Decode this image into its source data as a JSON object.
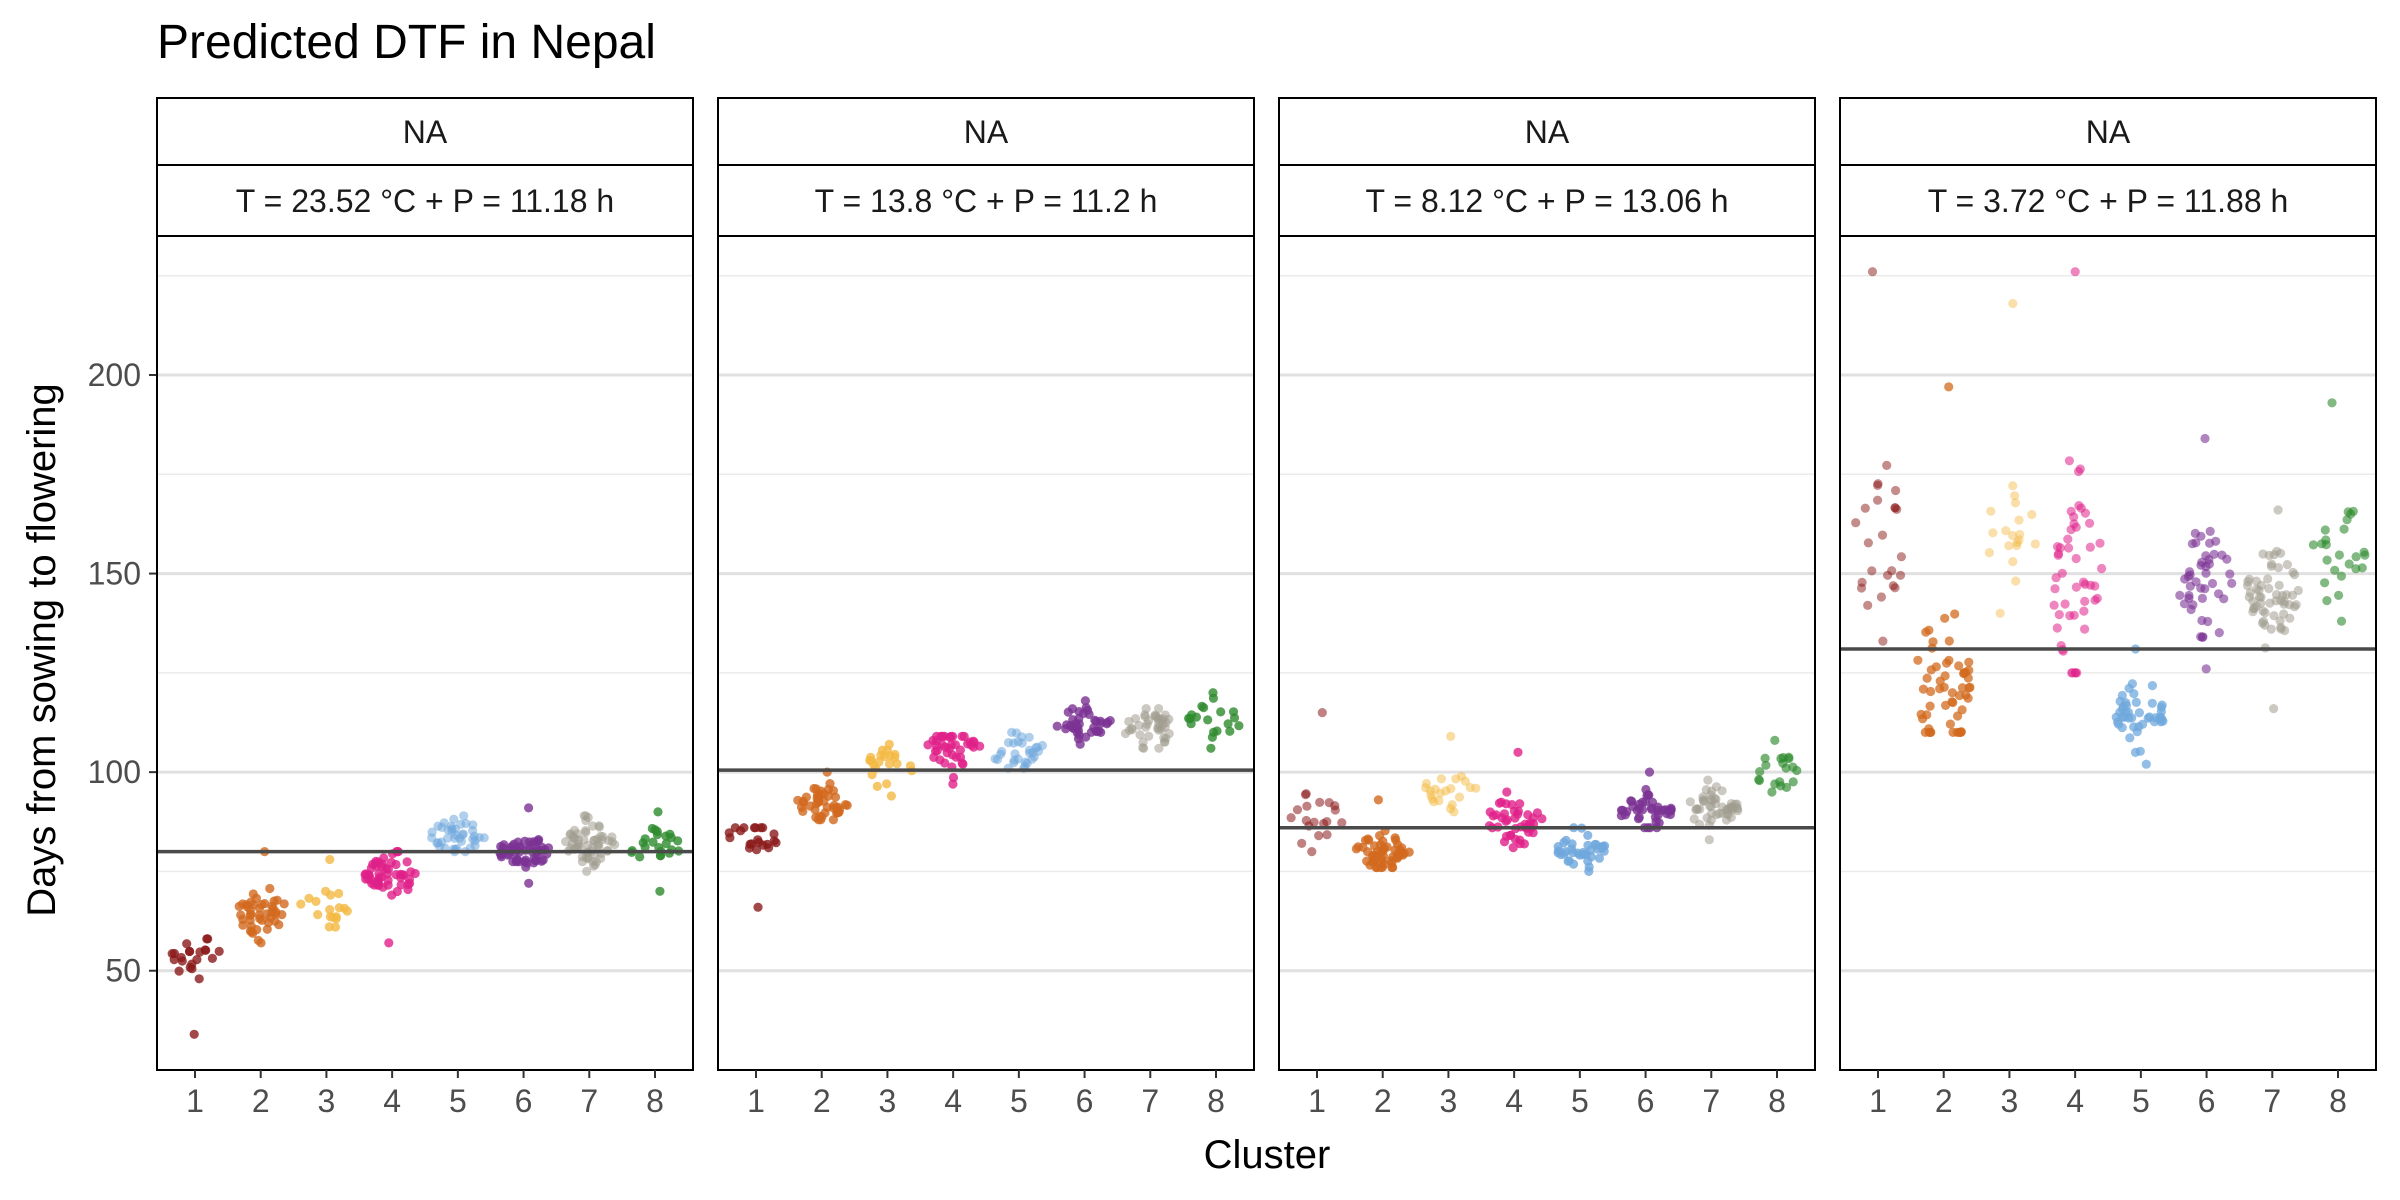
{
  "chart_data": {
    "type": "scatter",
    "title": "Predicted DTF in Nepal",
    "xlabel": "Cluster",
    "ylabel": "Days from sowing to flowering",
    "x_ticks": [
      "1",
      "2",
      "3",
      "4",
      "5",
      "6",
      "7",
      "8"
    ],
    "y_ticks": [
      50,
      100,
      150,
      200
    ],
    "ylim": [
      25,
      235
    ],
    "grid": true,
    "legend": "none",
    "series_colors": [
      "#8B1A1A",
      "#D2691E",
      "#F4B942",
      "#E0218A",
      "#6FA8DC",
      "#7B3294",
      "#A09C8F",
      "#2E8B2E"
    ],
    "panels": [
      {
        "strip_top": "NA",
        "strip_bottom": "T = 23.52 °C +  P = 11.18 h",
        "hline": 80,
        "clusters": [
          {
            "cluster": 1,
            "n": 22,
            "median": 54,
            "min": 34,
            "max": 58,
            "alpha": 0.8
          },
          {
            "cluster": 2,
            "n": 45,
            "median": 65,
            "min": 57,
            "max": 80,
            "alpha": 0.8
          },
          {
            "cluster": 3,
            "n": 18,
            "median": 66,
            "min": 61,
            "max": 78,
            "alpha": 0.8
          },
          {
            "cluster": 4,
            "n": 55,
            "median": 74,
            "min": 57,
            "max": 80,
            "alpha": 0.8
          },
          {
            "cluster": 5,
            "n": 40,
            "median": 84,
            "min": 80,
            "max": 89,
            "alpha": 0.55
          },
          {
            "cluster": 6,
            "n": 55,
            "median": 80,
            "min": 72,
            "max": 91,
            "alpha": 0.8
          },
          {
            "cluster": 7,
            "n": 60,
            "median": 82,
            "min": 75,
            "max": 89,
            "alpha": 0.55
          },
          {
            "cluster": 8,
            "n": 25,
            "median": 81,
            "min": 70,
            "max": 90,
            "alpha": 0.8
          }
        ]
      },
      {
        "strip_top": "NA",
        "strip_bottom": "T = 13.8 °C +  P = 11.2 h",
        "hline": 100.5,
        "clusters": [
          {
            "cluster": 1,
            "n": 22,
            "median": 84,
            "min": 66,
            "max": 86,
            "alpha": 0.8
          },
          {
            "cluster": 2,
            "n": 45,
            "median": 92,
            "min": 88,
            "max": 100,
            "alpha": 0.8
          },
          {
            "cluster": 3,
            "n": 22,
            "median": 101,
            "min": 94,
            "max": 107,
            "alpha": 0.8
          },
          {
            "cluster": 4,
            "n": 40,
            "median": 106,
            "min": 97,
            "max": 109,
            "alpha": 0.8
          },
          {
            "cluster": 5,
            "n": 30,
            "median": 105,
            "min": 101,
            "max": 110,
            "alpha": 0.55
          },
          {
            "cluster": 6,
            "n": 38,
            "median": 112,
            "min": 107,
            "max": 118,
            "alpha": 0.8
          },
          {
            "cluster": 7,
            "n": 42,
            "median": 111,
            "min": 106,
            "max": 116,
            "alpha": 0.55
          },
          {
            "cluster": 8,
            "n": 20,
            "median": 113,
            "min": 106,
            "max": 120,
            "alpha": 0.8
          }
        ]
      },
      {
        "strip_top": "NA",
        "strip_bottom": "T = 8.12 °C +  P = 13.06 h",
        "hline": 86,
        "clusters": [
          {
            "cluster": 1,
            "n": 20,
            "median": 88,
            "min": 80,
            "max": 115,
            "alpha": 0.55
          },
          {
            "cluster": 2,
            "n": 55,
            "median": 80,
            "min": 76,
            "max": 93,
            "alpha": 0.8
          },
          {
            "cluster": 3,
            "n": 22,
            "median": 96,
            "min": 90,
            "max": 109,
            "alpha": 0.5
          },
          {
            "cluster": 4,
            "n": 45,
            "median": 88,
            "min": 81,
            "max": 105,
            "alpha": 0.8
          },
          {
            "cluster": 5,
            "n": 38,
            "median": 80,
            "min": 75,
            "max": 86,
            "alpha": 0.8
          },
          {
            "cluster": 6,
            "n": 42,
            "median": 90,
            "min": 86,
            "max": 100,
            "alpha": 0.8
          },
          {
            "cluster": 7,
            "n": 50,
            "median": 91,
            "min": 83,
            "max": 98,
            "alpha": 0.55
          },
          {
            "cluster": 8,
            "n": 20,
            "median": 100,
            "min": 95,
            "max": 108,
            "alpha": 0.65
          }
        ]
      },
      {
        "strip_top": "NA",
        "strip_bottom": "T = 3.72 °C +  P = 11.88 h",
        "hline": 131,
        "clusters": [
          {
            "cluster": 1,
            "n": 25,
            "median": 158,
            "min": 133,
            "max": 226,
            "alpha": 0.5
          },
          {
            "cluster": 2,
            "n": 55,
            "median": 123,
            "min": 110,
            "max": 197,
            "alpha": 0.75
          },
          {
            "cluster": 3,
            "n": 20,
            "median": 160,
            "min": 140,
            "max": 218,
            "alpha": 0.45
          },
          {
            "cluster": 4,
            "n": 50,
            "median": 150,
            "min": 125,
            "max": 226,
            "alpha": 0.55
          },
          {
            "cluster": 5,
            "n": 45,
            "median": 115,
            "min": 102,
            "max": 131,
            "alpha": 0.75
          },
          {
            "cluster": 6,
            "n": 45,
            "median": 147,
            "min": 126,
            "max": 184,
            "alpha": 0.6
          },
          {
            "cluster": 7,
            "n": 60,
            "median": 145,
            "min": 116,
            "max": 166,
            "alpha": 0.55
          },
          {
            "cluster": 8,
            "n": 25,
            "median": 156,
            "min": 138,
            "max": 193,
            "alpha": 0.6
          }
        ]
      }
    ]
  }
}
